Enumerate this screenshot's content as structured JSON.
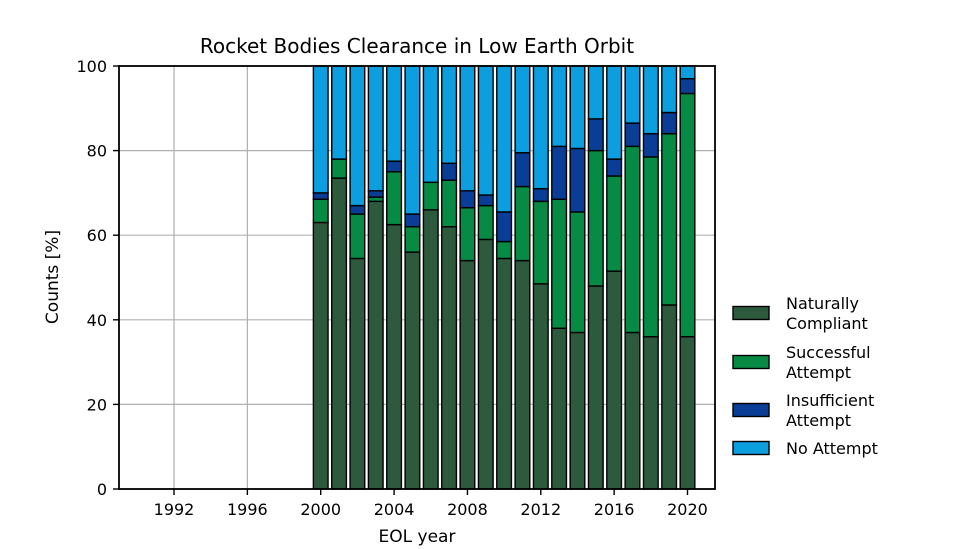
{
  "chart_data": {
    "type": "bar",
    "stacked": true,
    "title": "Rocket Bodies Clearance in Low Earth Orbit",
    "xlabel": "EOL year",
    "ylabel": "Counts [%]",
    "xlim": [
      1989,
      2021.5
    ],
    "ylim": [
      0,
      100
    ],
    "xticks": [
      1992,
      1996,
      2000,
      2004,
      2008,
      2012,
      2016,
      2020
    ],
    "yticks": [
      0,
      20,
      40,
      60,
      80,
      100
    ],
    "grid": true,
    "legend_position": "right",
    "x": [
      2000,
      2001,
      2002,
      2003,
      2004,
      2005,
      2006,
      2007,
      2008,
      2009,
      2010,
      2011,
      2012,
      2013,
      2014,
      2015,
      2016,
      2017,
      2018,
      2019,
      2020
    ],
    "series": [
      {
        "name": "Naturally Compliant",
        "legend_lines": [
          "Naturally",
          "Compliant"
        ],
        "color": "#2d5a3c",
        "values": [
          63,
          73.5,
          54.5,
          68,
          62.5,
          56,
          66,
          62,
          54,
          59,
          54.5,
          54,
          48.5,
          38,
          37,
          48,
          51.5,
          37,
          36,
          43.5,
          36
        ]
      },
      {
        "name": "Successful Attempt",
        "legend_lines": [
          "Successful",
          "Attempt"
        ],
        "color": "#078a44",
        "values": [
          5.5,
          4.5,
          10.5,
          1,
          12.5,
          6,
          6.5,
          11,
          12.5,
          8,
          4,
          17.5,
          19.5,
          30.5,
          28.5,
          32,
          22.5,
          44,
          42.5,
          40.5,
          57.5
        ]
      },
      {
        "name": "Insufficient Attempt",
        "legend_lines": [
          "Insufficient",
          "Attempt"
        ],
        "color": "#0a3e96",
        "values": [
          1.5,
          0,
          2,
          1.5,
          2.5,
          3,
          0,
          4,
          4,
          2.5,
          7,
          8,
          3,
          12.5,
          15,
          7.5,
          4,
          5.5,
          5.5,
          5,
          3.5
        ]
      },
      {
        "name": "No Attempt",
        "legend_lines": [
          "No Attempt"
        ],
        "color": "#0c9ede",
        "values": [
          30,
          22,
          33,
          29.5,
          22.5,
          35,
          27.5,
          23,
          29.5,
          30.5,
          34.5,
          20.5,
          29,
          19,
          19.5,
          12.5,
          22,
          13.5,
          16,
          11,
          3
        ]
      }
    ]
  }
}
